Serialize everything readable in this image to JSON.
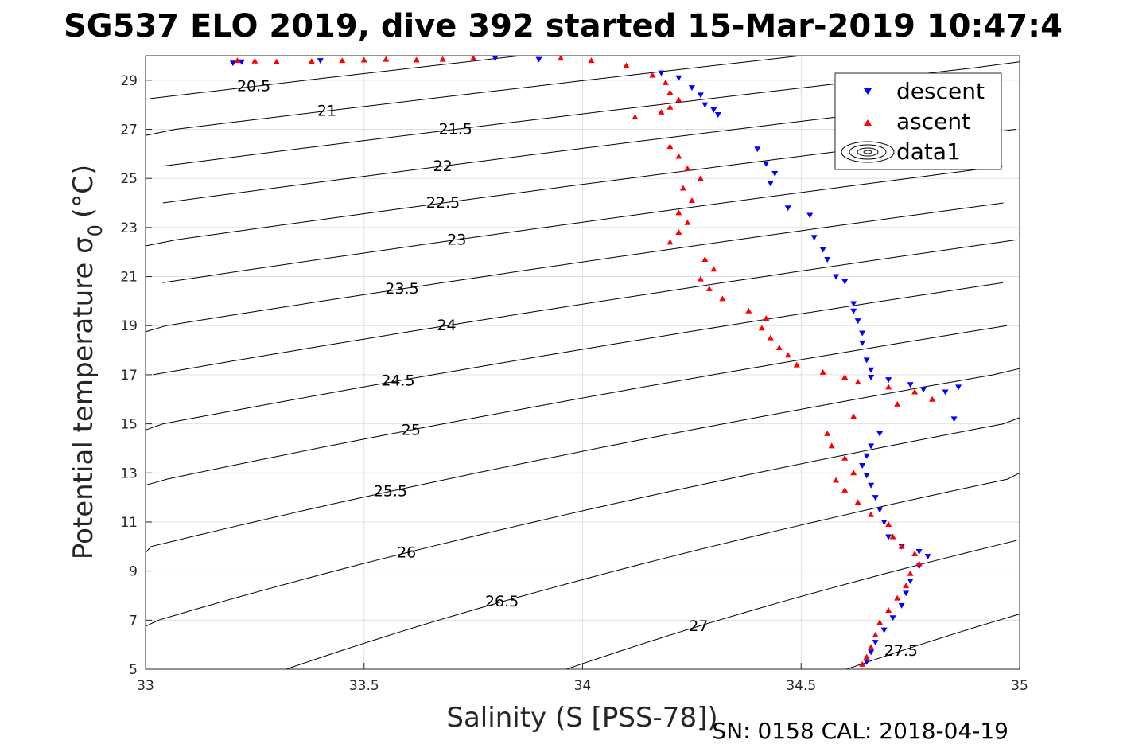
{
  "chart_data": {
    "type": "scatter",
    "title": "SG537 ELO 2019, dive 392 started 15-Mar-2019 10:47:4",
    "xlabel": "Salinity (S [PSS-78])",
    "ylabel_main": "Potential temperature σ",
    "ylabel_sub": "0",
    "ylabel_unit": "(°C)",
    "footer": "SN: 0158  CAL: 2018-04-19",
    "xlim": [
      33,
      35
    ],
    "ylim": [
      5,
      30
    ],
    "xticks": [
      "33",
      "33.5",
      "34",
      "34.5",
      "35"
    ],
    "yticks": [
      "5",
      "7",
      "9",
      "11",
      "13",
      "15",
      "17",
      "19",
      "21",
      "23",
      "25",
      "27",
      "29"
    ],
    "grid": true,
    "legend": {
      "placement": "top-right",
      "entries": [
        "descent",
        "ascent",
        "data1"
      ]
    },
    "colors": {
      "descent": "#0000ff",
      "ascent": "#ff0000",
      "contour": "#000000",
      "grid": "#e0e0e0"
    },
    "contour_levels": [
      "20.5",
      "21",
      "21.5",
      "22",
      "22.5",
      "23",
      "23.5",
      "24",
      "24.5",
      "25",
      "25.5",
      "26",
      "26.5",
      "27",
      "27.5"
    ],
    "series": [
      {
        "name": "descent",
        "marker": "triangle-down",
        "points": [
          [
            33.2,
            29.7
          ],
          [
            33.22,
            29.75
          ],
          [
            33.4,
            29.8
          ],
          [
            33.8,
            29.9
          ],
          [
            33.9,
            29.85
          ],
          [
            34.18,
            29.3
          ],
          [
            34.22,
            29.1
          ],
          [
            34.25,
            28.7
          ],
          [
            34.27,
            28.4
          ],
          [
            34.28,
            28.0
          ],
          [
            34.3,
            27.8
          ],
          [
            34.31,
            27.6
          ],
          [
            34.4,
            26.2
          ],
          [
            34.42,
            25.6
          ],
          [
            34.44,
            25.2
          ],
          [
            34.43,
            24.8
          ],
          [
            34.47,
            23.8
          ],
          [
            34.52,
            23.5
          ],
          [
            34.53,
            22.6
          ],
          [
            34.55,
            22.1
          ],
          [
            34.56,
            21.7
          ],
          [
            34.58,
            21.0
          ],
          [
            34.6,
            20.8
          ],
          [
            34.62,
            19.9
          ],
          [
            34.62,
            19.6
          ],
          [
            34.63,
            19.2
          ],
          [
            34.64,
            18.7
          ],
          [
            34.64,
            18.3
          ],
          [
            34.65,
            17.6
          ],
          [
            34.66,
            17.2
          ],
          [
            34.66,
            16.9
          ],
          [
            34.7,
            16.8
          ],
          [
            34.75,
            16.6
          ],
          [
            34.78,
            16.4
          ],
          [
            34.83,
            16.3
          ],
          [
            34.86,
            16.5
          ],
          [
            34.85,
            15.2
          ],
          [
            34.68,
            14.6
          ],
          [
            34.66,
            14.1
          ],
          [
            34.65,
            13.7
          ],
          [
            34.64,
            13.3
          ],
          [
            34.65,
            12.9
          ],
          [
            34.66,
            12.5
          ],
          [
            34.67,
            12.0
          ],
          [
            34.68,
            11.5
          ],
          [
            34.69,
            11.0
          ],
          [
            34.7,
            10.4
          ],
          [
            34.73,
            10.0
          ],
          [
            34.77,
            9.8
          ],
          [
            34.79,
            9.6
          ],
          [
            34.77,
            9.2
          ],
          [
            34.75,
            8.6
          ],
          [
            34.74,
            8.1
          ],
          [
            34.73,
            7.6
          ],
          [
            34.71,
            7.1
          ],
          [
            34.69,
            6.6
          ],
          [
            34.67,
            6.1
          ],
          [
            34.66,
            5.7
          ],
          [
            34.65,
            5.3
          ]
        ]
      },
      {
        "name": "ascent",
        "marker": "triangle-up",
        "points": [
          [
            33.21,
            29.8
          ],
          [
            33.25,
            29.78
          ],
          [
            33.3,
            29.75
          ],
          [
            33.38,
            29.77
          ],
          [
            33.45,
            29.8
          ],
          [
            33.5,
            29.82
          ],
          [
            33.55,
            29.85
          ],
          [
            33.62,
            29.82
          ],
          [
            33.68,
            29.85
          ],
          [
            33.75,
            29.9
          ],
          [
            33.95,
            29.9
          ],
          [
            34.02,
            29.8
          ],
          [
            34.1,
            29.6
          ],
          [
            34.16,
            29.2
          ],
          [
            34.19,
            28.9
          ],
          [
            34.2,
            28.5
          ],
          [
            34.22,
            28.2
          ],
          [
            34.2,
            27.9
          ],
          [
            34.18,
            27.7
          ],
          [
            34.12,
            27.5
          ],
          [
            34.2,
            26.3
          ],
          [
            34.22,
            25.9
          ],
          [
            34.24,
            25.4
          ],
          [
            34.27,
            25.0
          ],
          [
            34.23,
            24.6
          ],
          [
            34.25,
            24.1
          ],
          [
            34.22,
            23.6
          ],
          [
            34.24,
            23.2
          ],
          [
            34.22,
            22.8
          ],
          [
            34.2,
            22.4
          ],
          [
            34.28,
            21.7
          ],
          [
            34.3,
            21.3
          ],
          [
            34.27,
            20.9
          ],
          [
            34.29,
            20.5
          ],
          [
            34.32,
            20.1
          ],
          [
            34.38,
            19.6
          ],
          [
            34.42,
            19.3
          ],
          [
            34.41,
            18.9
          ],
          [
            34.43,
            18.5
          ],
          [
            34.45,
            18.1
          ],
          [
            34.47,
            17.8
          ],
          [
            34.49,
            17.4
          ],
          [
            34.55,
            17.1
          ],
          [
            34.6,
            16.9
          ],
          [
            34.63,
            16.7
          ],
          [
            34.7,
            16.5
          ],
          [
            34.76,
            16.3
          ],
          [
            34.8,
            16.0
          ],
          [
            34.72,
            15.8
          ],
          [
            34.62,
            15.3
          ],
          [
            34.56,
            14.6
          ],
          [
            34.57,
            14.1
          ],
          [
            34.6,
            13.6
          ],
          [
            34.62,
            13.0
          ],
          [
            34.58,
            12.7
          ],
          [
            34.6,
            12.3
          ],
          [
            34.63,
            11.8
          ],
          [
            34.66,
            11.3
          ],
          [
            34.7,
            10.9
          ],
          [
            34.71,
            10.4
          ],
          [
            34.73,
            10.0
          ],
          [
            34.76,
            9.7
          ],
          [
            34.77,
            9.3
          ],
          [
            34.75,
            8.9
          ],
          [
            34.74,
            8.4
          ],
          [
            34.72,
            7.9
          ],
          [
            34.7,
            7.4
          ],
          [
            34.68,
            6.9
          ],
          [
            34.67,
            6.4
          ],
          [
            34.66,
            5.9
          ],
          [
            34.65,
            5.5
          ],
          [
            34.64,
            5.2
          ]
        ]
      }
    ]
  }
}
